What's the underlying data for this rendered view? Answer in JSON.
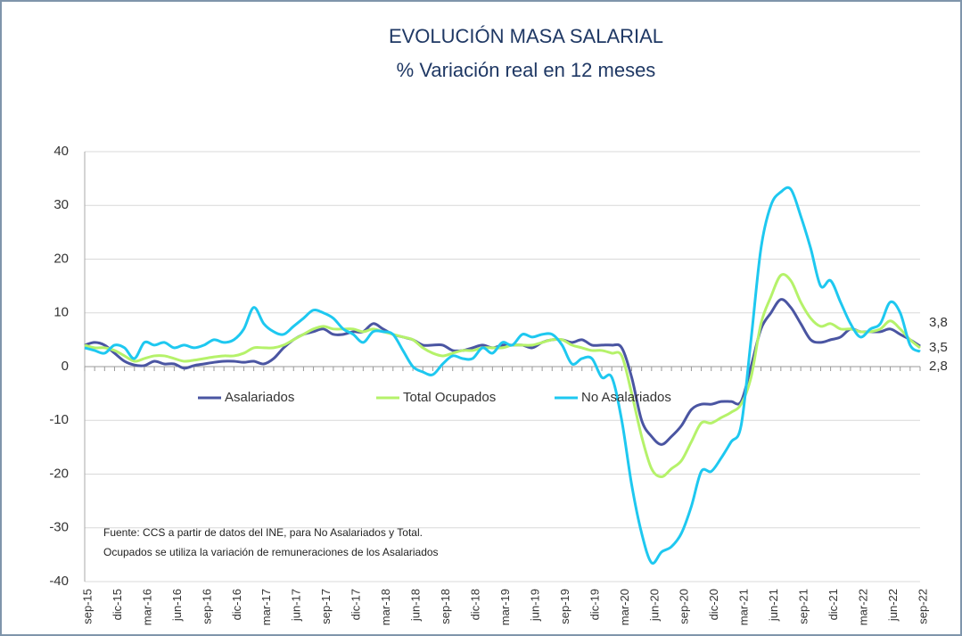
{
  "chart_data": {
    "type": "line",
    "title": "EVOLUCIÓN MASA SALARIAL",
    "subtitle": "% Variación real en 12 meses",
    "note": [
      "Fuente: CCS a partir de datos del INE, para No Asalariados y Total.",
      "Ocupados se utiliza la variación de remuneraciones de los Asalariados"
    ],
    "categories": [
      "sep-15",
      null,
      null,
      "dic-15",
      null,
      null,
      "mar-16",
      null,
      null,
      "jun-16",
      null,
      null,
      "sep-16",
      null,
      null,
      "dic-16",
      null,
      null,
      "mar-17",
      null,
      null,
      "jun-17",
      null,
      null,
      "sep-17",
      null,
      null,
      "dic-17",
      null,
      null,
      "mar-18",
      null,
      null,
      "jun-18",
      null,
      null,
      "sep-18",
      null,
      null,
      "dic-18",
      null,
      null,
      "mar-19",
      null,
      null,
      "jun-19",
      null,
      null,
      "sep-19",
      null,
      null,
      "dic-19",
      null,
      null,
      "mar-20",
      null,
      null,
      "jun-20",
      null,
      null,
      "sep-20",
      null,
      null,
      "dic-20",
      null,
      null,
      "mar-21",
      null,
      null,
      "jun-21",
      null,
      null,
      "sep-21",
      null,
      null,
      "dic-21",
      null,
      null,
      "mar-22",
      null,
      null,
      "jun-22",
      null,
      null,
      "sep-22"
    ],
    "series": [
      {
        "name": "Asalariados",
        "color": "#4a55a2",
        "values": [
          4,
          4.5,
          4,
          2.5,
          1,
          0.3,
          0.2,
          1,
          0.5,
          0.5,
          -0.3,
          0.2,
          0.5,
          0.8,
          1,
          1,
          0.8,
          1,
          0.5,
          1.5,
          3.5,
          5,
          6,
          6.5,
          7,
          6,
          6,
          6.5,
          6.5,
          8,
          7,
          6,
          5.5,
          5,
          4,
          4,
          4,
          3,
          3,
          3.5,
          4,
          3.5,
          4,
          4,
          4,
          3.5,
          4.5,
          5,
          5,
          4.5,
          5,
          4,
          4,
          4,
          3.5,
          -2,
          -10,
          -13,
          -14.5,
          -13,
          -11,
          -8,
          -7,
          -7,
          -6.5,
          -6.5,
          -6.5,
          0,
          7,
          10,
          12.5,
          11,
          8,
          5,
          4.5,
          5,
          5.5,
          7,
          6.5,
          6.5,
          6.5,
          7,
          6,
          5,
          3.8
        ],
        "value_labels": [
          null,
          null,
          null,
          null,
          null,
          null,
          null,
          null,
          null,
          null,
          null,
          null,
          null,
          null,
          null,
          null,
          null,
          null,
          null,
          null,
          null,
          null,
          null,
          null,
          null,
          null,
          null,
          null,
          null,
          null,
          null,
          null,
          null,
          null,
          null,
          null,
          null,
          null,
          null,
          null,
          null,
          null,
          null,
          null,
          null,
          null,
          null,
          null,
          null,
          null,
          null,
          null,
          null,
          null,
          null,
          null,
          null,
          null,
          null,
          null,
          null,
          null,
          null,
          null,
          null,
          null,
          null,
          null,
          null,
          null,
          null,
          null,
          null,
          null,
          null,
          null,
          null,
          null,
          null,
          null,
          null,
          null,
          null,
          null,
          "3,8"
        ]
      },
      {
        "name": "Total Ocupados",
        "color": "#b5f26a",
        "values": [
          4,
          3.5,
          3.5,
          3,
          2,
          1,
          1.5,
          2,
          2,
          1.5,
          1,
          1.2,
          1.5,
          1.8,
          2,
          2,
          2.5,
          3.5,
          3.5,
          3.5,
          4,
          5,
          6,
          7,
          7.5,
          7,
          7,
          7,
          6.5,
          7,
          6.5,
          6,
          5.5,
          5,
          3.5,
          2.5,
          2,
          2.5,
          3,
          3,
          3.5,
          3.5,
          3.5,
          4,
          4,
          4,
          4.5,
          5,
          5,
          4,
          3.5,
          3,
          3,
          2.5,
          2,
          -5,
          -13,
          -19,
          -20.5,
          -19,
          -17.5,
          -14,
          -10.5,
          -10.5,
          -9.5,
          -8.5,
          -7,
          -2,
          8,
          13,
          17,
          16,
          12,
          9,
          7.5,
          8,
          7,
          7,
          6.5,
          6.5,
          7,
          8.5,
          7,
          5,
          3.5
        ],
        "value_labels": [
          null,
          null,
          null,
          null,
          null,
          null,
          null,
          null,
          null,
          null,
          null,
          null,
          null,
          null,
          null,
          null,
          null,
          null,
          null,
          null,
          null,
          null,
          null,
          null,
          null,
          null,
          null,
          null,
          null,
          null,
          null,
          null,
          null,
          null,
          null,
          null,
          null,
          null,
          null,
          null,
          null,
          null,
          null,
          null,
          null,
          null,
          null,
          null,
          null,
          null,
          null,
          null,
          null,
          null,
          null,
          null,
          null,
          null,
          null,
          null,
          null,
          null,
          null,
          null,
          null,
          null,
          null,
          null,
          null,
          null,
          null,
          null,
          null,
          null,
          null,
          null,
          null,
          null,
          null,
          null,
          null,
          null,
          null,
          null,
          "3,5"
        ]
      },
      {
        "name": "No Asalariados",
        "color": "#1ec8f0",
        "values": [
          3.5,
          3,
          2.5,
          4,
          3.5,
          1.5,
          4.5,
          4,
          4.5,
          3.5,
          4,
          3.5,
          4,
          5,
          4.5,
          5,
          7,
          11,
          8,
          6.5,
          6,
          7.5,
          9,
          10.5,
          10,
          9,
          7,
          6,
          4.5,
          6.5,
          6.5,
          6,
          3,
          0,
          -1,
          -1.5,
          0.5,
          2,
          1.5,
          1.5,
          3.5,
          2.5,
          4.5,
          4,
          6,
          5.5,
          6,
          6,
          4,
          0.5,
          1.5,
          1.5,
          -2,
          -2,
          -10,
          -22,
          -31,
          -36.5,
          -34.5,
          -33.5,
          -31,
          -26,
          -19.5,
          -19.5,
          -17,
          -14,
          -11,
          5,
          22,
          30,
          32.5,
          33,
          28,
          22,
          15,
          16,
          12,
          8,
          5.5,
          7,
          8,
          12,
          10,
          4,
          2.8
        ],
        "value_labels": [
          null,
          null,
          null,
          null,
          null,
          null,
          null,
          null,
          null,
          null,
          null,
          null,
          null,
          null,
          null,
          null,
          null,
          null,
          null,
          null,
          null,
          null,
          null,
          null,
          null,
          null,
          null,
          null,
          null,
          null,
          null,
          null,
          null,
          null,
          null,
          null,
          null,
          null,
          null,
          null,
          null,
          null,
          null,
          null,
          null,
          null,
          null,
          null,
          null,
          null,
          null,
          null,
          null,
          null,
          null,
          null,
          null,
          null,
          null,
          null,
          null,
          null,
          null,
          null,
          null,
          null,
          null,
          null,
          null,
          null,
          null,
          null,
          null,
          null,
          null,
          null,
          null,
          null,
          null,
          null,
          null,
          null,
          null,
          null,
          "2,8"
        ]
      }
    ],
    "ylim": [
      -40,
      40
    ],
    "yticks": [
      -40,
      -30,
      -20,
      -10,
      0,
      10,
      20,
      30,
      40
    ],
    "grid": true
  }
}
